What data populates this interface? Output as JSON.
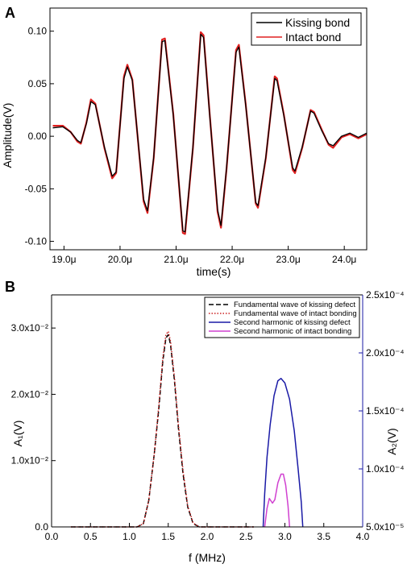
{
  "chart_data": [
    {
      "type": "line",
      "panel_label": "A",
      "xlabel": "time(s)",
      "ylabel": "Amplitude(V)",
      "xlim": [
        18.75,
        24.4
      ],
      "ylim": [
        -0.108,
        0.122
      ],
      "x_ticks": [
        19.0,
        20.0,
        21.0,
        22.0,
        23.0,
        24.0
      ],
      "x_tick_labels": [
        "19.0μ",
        "20.0μ",
        "21.0μ",
        "22.0μ",
        "23.0μ",
        "24.0μ"
      ],
      "y_ticks": [
        -0.1,
        -0.05,
        0.0,
        0.05,
        0.1
      ],
      "y_tick_labels": [
        "-0.10",
        "-0.05",
        "0.00",
        "0.05",
        "0.10"
      ],
      "legend_position": "top-right",
      "series": [
        {
          "name": "Kissing bond",
          "color": "#000000",
          "points": [
            [
              18.8,
              0.008
            ],
            [
              18.98,
              0.009
            ],
            [
              19.12,
              0.004
            ],
            [
              19.24,
              -0.004
            ],
            [
              19.3,
              -0.006
            ],
            [
              19.4,
              0.012
            ],
            [
              19.48,
              0.033
            ],
            [
              19.56,
              0.03
            ],
            [
              19.72,
              -0.01
            ],
            [
              19.86,
              -0.038
            ],
            [
              19.93,
              -0.034
            ],
            [
              20.07,
              0.055
            ],
            [
              20.13,
              0.066
            ],
            [
              20.22,
              0.053
            ],
            [
              20.42,
              -0.06
            ],
            [
              20.49,
              -0.071
            ],
            [
              20.6,
              -0.02
            ],
            [
              20.75,
              0.09
            ],
            [
              20.8,
              0.091
            ],
            [
              20.95,
              0.02
            ],
            [
              21.12,
              -0.09
            ],
            [
              21.16,
              -0.091
            ],
            [
              21.3,
              -0.01
            ],
            [
              21.44,
              0.097
            ],
            [
              21.49,
              0.094
            ],
            [
              21.6,
              0.02
            ],
            [
              21.74,
              -0.07
            ],
            [
              21.8,
              -0.085
            ],
            [
              21.9,
              -0.03
            ],
            [
              22.07,
              0.08
            ],
            [
              22.12,
              0.085
            ],
            [
              22.24,
              0.03
            ],
            [
              22.42,
              -0.063
            ],
            [
              22.46,
              -0.066
            ],
            [
              22.6,
              -0.02
            ],
            [
              22.76,
              0.055
            ],
            [
              22.8,
              0.053
            ],
            [
              22.92,
              0.02
            ],
            [
              23.08,
              -0.03
            ],
            [
              23.12,
              -0.033
            ],
            [
              23.25,
              -0.01
            ],
            [
              23.4,
              0.024
            ],
            [
              23.46,
              0.022
            ],
            [
              23.6,
              0.005
            ],
            [
              23.72,
              -0.007
            ],
            [
              23.8,
              -0.009
            ],
            [
              23.95,
              0.0
            ],
            [
              24.1,
              0.003
            ],
            [
              24.25,
              -0.001
            ],
            [
              24.4,
              0.003
            ]
          ]
        },
        {
          "name": "Intact bond",
          "color": "#e02020",
          "points": [
            [
              18.8,
              0.01
            ],
            [
              18.98,
              0.01
            ],
            [
              19.12,
              0.004
            ],
            [
              19.24,
              -0.005
            ],
            [
              19.3,
              -0.007
            ],
            [
              19.4,
              0.013
            ],
            [
              19.48,
              0.035
            ],
            [
              19.56,
              0.031
            ],
            [
              19.72,
              -0.011
            ],
            [
              19.86,
              -0.04
            ],
            [
              19.93,
              -0.035
            ],
            [
              20.07,
              0.057
            ],
            [
              20.13,
              0.068
            ],
            [
              20.22,
              0.054
            ],
            [
              20.42,
              -0.062
            ],
            [
              20.49,
              -0.073
            ],
            [
              20.6,
              -0.021
            ],
            [
              20.75,
              0.092
            ],
            [
              20.8,
              0.093
            ],
            [
              20.95,
              0.021
            ],
            [
              21.12,
              -0.092
            ],
            [
              21.16,
              -0.093
            ],
            [
              21.3,
              -0.011
            ],
            [
              21.44,
              0.099
            ],
            [
              21.49,
              0.096
            ],
            [
              21.6,
              0.021
            ],
            [
              21.74,
              -0.072
            ],
            [
              21.8,
              -0.087
            ],
            [
              21.9,
              -0.031
            ],
            [
              22.07,
              0.082
            ],
            [
              22.12,
              0.087
            ],
            [
              22.24,
              0.031
            ],
            [
              22.42,
              -0.064
            ],
            [
              22.46,
              -0.068
            ],
            [
              22.6,
              -0.021
            ],
            [
              22.76,
              0.057
            ],
            [
              22.8,
              0.055
            ],
            [
              22.92,
              0.021
            ],
            [
              23.08,
              -0.032
            ],
            [
              23.12,
              -0.035
            ],
            [
              23.25,
              -0.011
            ],
            [
              23.4,
              0.025
            ],
            [
              23.46,
              0.023
            ],
            [
              23.6,
              0.006
            ],
            [
              23.72,
              -0.008
            ],
            [
              23.8,
              -0.011
            ],
            [
              23.95,
              -0.001
            ],
            [
              24.1,
              0.002
            ],
            [
              24.25,
              -0.002
            ],
            [
              24.4,
              0.002
            ]
          ]
        }
      ]
    },
    {
      "type": "line",
      "panel_label": "B",
      "xlabel": "f (MHz)",
      "ylabel": "A₁(V)",
      "y2label": "A₂(V)",
      "xlim": [
        0.0,
        4.0
      ],
      "ylim": [
        0.0,
        0.035
      ],
      "y2lim": [
        5e-05,
        0.00025
      ],
      "x_ticks": [
        0.0,
        0.5,
        1.0,
        1.5,
        2.0,
        2.5,
        3.0,
        3.5,
        4.0
      ],
      "x_tick_labels": [
        "0.0",
        "0.5",
        "1.0",
        "1.5",
        "2.0",
        "2.5",
        "3.0",
        "3.5",
        "4.0"
      ],
      "y_ticks": [
        0.0,
        0.01,
        0.02,
        0.03
      ],
      "y_tick_labels": [
        "0.0",
        "1.0x10⁻²",
        "2.0x10⁻²",
        "3.0x10⁻²"
      ],
      "y2_ticks": [
        5e-05,
        0.0001,
        0.00015,
        0.0002,
        0.00025
      ],
      "y2_tick_labels": [
        "5.0x10⁻⁵",
        "1.0x10⁻⁴",
        "1.5x10⁻⁴",
        "2.0x10⁻⁴",
        "2.5x10⁻⁴"
      ],
      "legend_position": "top-right",
      "series": [
        {
          "name": "Fundamental wave of kissing defect",
          "color": "#000000",
          "style": "dashed",
          "axis": "left",
          "points": [
            [
              0.25,
              0.0
            ],
            [
              1.1,
              0.0
            ],
            [
              1.18,
              0.0005
            ],
            [
              1.25,
              0.004
            ],
            [
              1.32,
              0.011
            ],
            [
              1.38,
              0.018
            ],
            [
              1.43,
              0.025
            ],
            [
              1.47,
              0.0285
            ],
            [
              1.5,
              0.029
            ],
            [
              1.53,
              0.0275
            ],
            [
              1.58,
              0.022
            ],
            [
              1.63,
              0.015
            ],
            [
              1.69,
              0.008
            ],
            [
              1.75,
              0.003
            ],
            [
              1.82,
              0.0005
            ],
            [
              1.9,
              0.0
            ],
            [
              2.6,
              0.0
            ]
          ]
        },
        {
          "name": "Fundamental wave of intact bonding",
          "color": "#cc2222",
          "style": "dotted",
          "axis": "left",
          "points": [
            [
              0.25,
              0.0
            ],
            [
              1.1,
              0.0
            ],
            [
              1.18,
              0.0005
            ],
            [
              1.25,
              0.004
            ],
            [
              1.32,
              0.011
            ],
            [
              1.38,
              0.0185
            ],
            [
              1.43,
              0.0255
            ],
            [
              1.47,
              0.029
            ],
            [
              1.5,
              0.0295
            ],
            [
              1.53,
              0.028
            ],
            [
              1.58,
              0.0225
            ],
            [
              1.63,
              0.0155
            ],
            [
              1.69,
              0.0085
            ],
            [
              1.75,
              0.0032
            ],
            [
              1.82,
              0.0006
            ],
            [
              1.9,
              0.0
            ],
            [
              2.6,
              0.0
            ]
          ]
        },
        {
          "name": "Second harmonic of kissing defect",
          "color": "#1a1aa6",
          "style": "solid",
          "axis": "right",
          "points": [
            [
              2.72,
              5e-05
            ],
            [
              2.74,
              7.85e-05
            ],
            [
              2.77,
              0.00011
            ],
            [
              2.81,
              0.000138
            ],
            [
              2.86,
              0.000163
            ],
            [
              2.91,
              0.000176
            ],
            [
              2.95,
              0.000178
            ],
            [
              3.0,
              0.000174
            ],
            [
              3.06,
              0.00016
            ],
            [
              3.12,
              0.000133
            ],
            [
              3.17,
              0.0001
            ],
            [
              3.21,
              7.15e-05
            ],
            [
              3.23,
              5e-05
            ]
          ]
        },
        {
          "name": "Second harmonic of intact bonding",
          "color": "#d040d0",
          "style": "solid",
          "axis": "right",
          "points": [
            [
              2.74,
              5e-05
            ],
            [
              2.77,
              6.6e-05
            ],
            [
              2.8,
              7.45e-05
            ],
            [
              2.84,
              7.05e-05
            ],
            [
              2.87,
              7.35e-05
            ],
            [
              2.91,
              8.8e-05
            ],
            [
              2.95,
              9.55e-05
            ],
            [
              2.98,
              9.55e-05
            ],
            [
              3.01,
              8.6e-05
            ],
            [
              3.04,
              6.8e-05
            ],
            [
              3.06,
              5e-05
            ]
          ]
        }
      ]
    }
  ]
}
